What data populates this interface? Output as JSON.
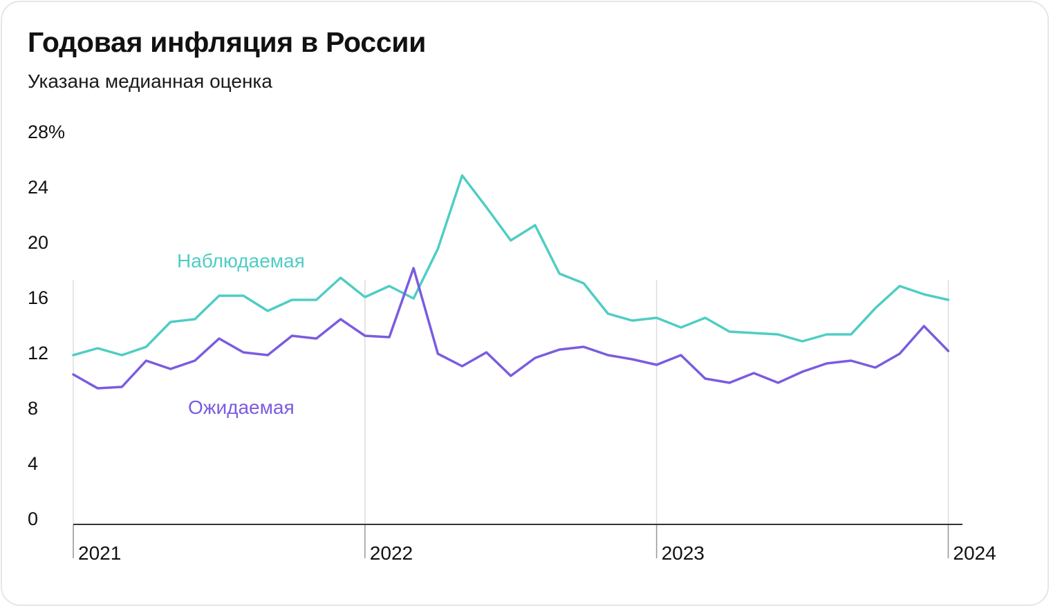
{
  "header": {
    "title": "Годовая инфляция в России",
    "subtitle": "Указана медианная оценка"
  },
  "chart_data": {
    "type": "line",
    "title": "Годовая инфляция в России",
    "subtitle": "Указана медианная оценка",
    "xlabel": "",
    "ylabel": "",
    "ylim": [
      0,
      28
    ],
    "y_ticks": [
      "0",
      "4",
      "8",
      "12",
      "16",
      "20",
      "24",
      "28%"
    ],
    "x_ticks": [
      "2021",
      "2022",
      "2023",
      "2024"
    ],
    "x": [
      "2021-01",
      "2021-02",
      "2021-03",
      "2021-04",
      "2021-05",
      "2021-06",
      "2021-07",
      "2021-08",
      "2021-09",
      "2021-10",
      "2021-11",
      "2021-12",
      "2022-01",
      "2022-02",
      "2022-03",
      "2022-04",
      "2022-05",
      "2022-06",
      "2022-07",
      "2022-08",
      "2022-09",
      "2022-10",
      "2022-11",
      "2022-12",
      "2023-01",
      "2023-02",
      "2023-03",
      "2023-04",
      "2023-05",
      "2023-06",
      "2023-07",
      "2023-08",
      "2023-09",
      "2023-10",
      "2023-11",
      "2023-12",
      "2024-01"
    ],
    "grid": false,
    "series": [
      {
        "name": "Наблюдаемая",
        "color": "#4ecdc4",
        "values": [
          11.8,
          12.3,
          11.8,
          12.4,
          14.2,
          14.4,
          16.1,
          16.1,
          15.0,
          15.8,
          15.8,
          17.4,
          16.0,
          16.8,
          15.9,
          19.5,
          24.8,
          22.5,
          20.1,
          21.2,
          17.7,
          17.0,
          14.8,
          14.3,
          14.5,
          13.8,
          14.5,
          13.5,
          13.4,
          13.3,
          12.8,
          13.3,
          13.3,
          15.2,
          16.8,
          16.2,
          15.8
        ]
      },
      {
        "name": "Ожидаемая",
        "color": "#7b5be0",
        "values": [
          10.4,
          9.4,
          9.5,
          11.4,
          10.8,
          11.4,
          13.0,
          12.0,
          11.8,
          13.2,
          13.0,
          14.4,
          13.2,
          13.1,
          18.1,
          11.9,
          11.0,
          12.0,
          10.3,
          11.6,
          12.2,
          12.4,
          11.8,
          11.5,
          11.1,
          11.8,
          10.1,
          9.8,
          10.5,
          9.8,
          10.6,
          11.2,
          11.4,
          10.9,
          11.9,
          13.9,
          12.1
        ]
      }
    ]
  }
}
